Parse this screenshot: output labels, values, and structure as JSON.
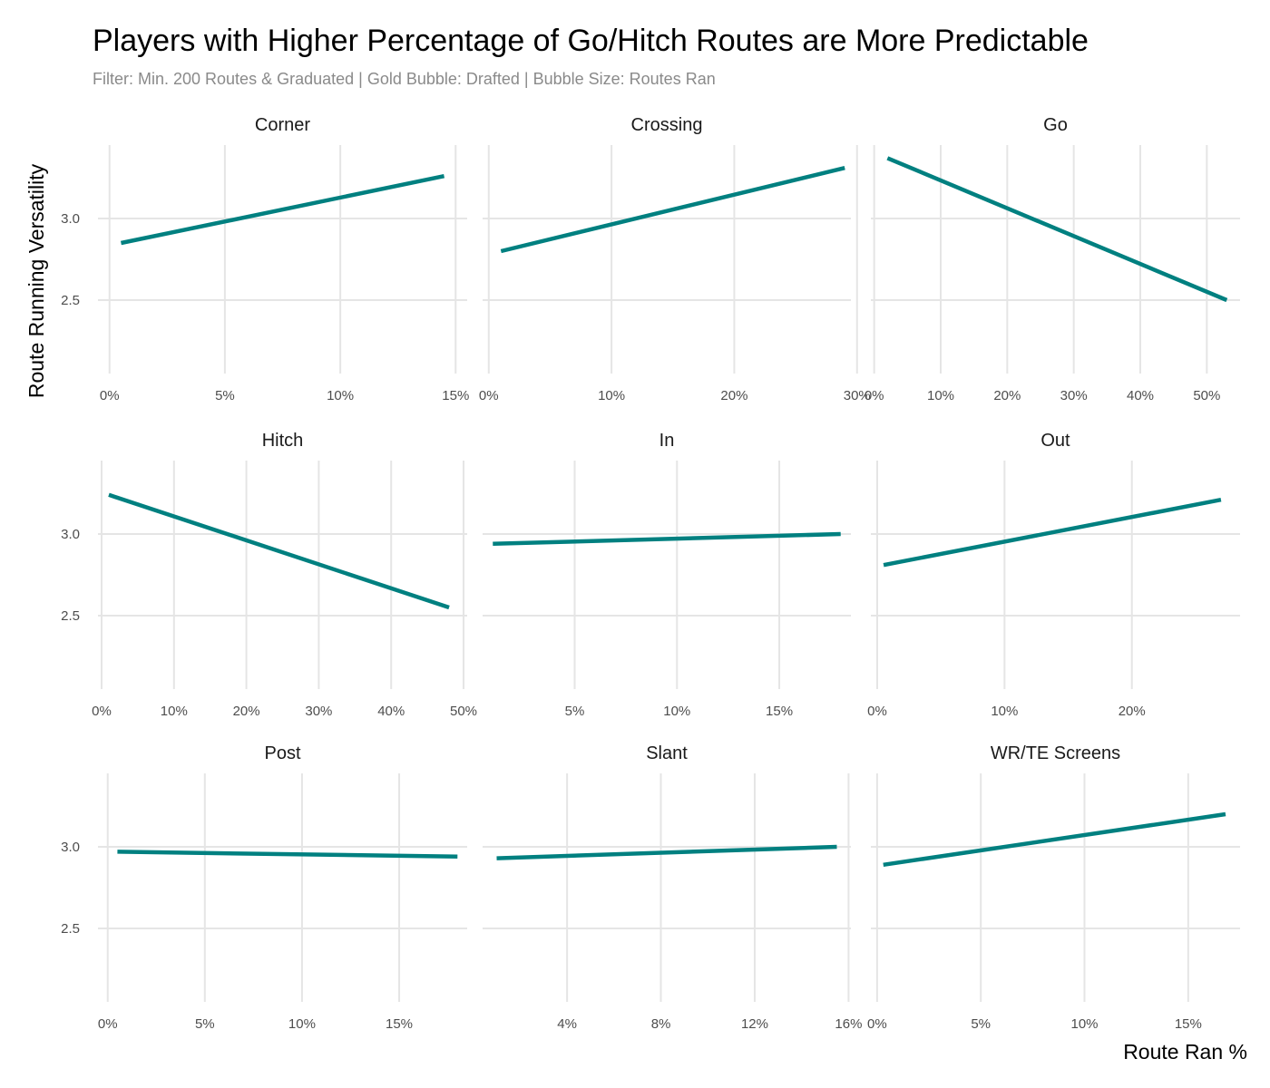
{
  "chart_data": {
    "type": "scatter",
    "title": "Players with Higher Percentage of Go/Hitch Routes are More Predictable",
    "subtitle": "Filter: Min. 200 Routes & Graduated | Gold Bubble: Drafted | Bubble Size: Routes Ran",
    "xlabel": "Route Ran %",
    "ylabel": "Route Running Versatility",
    "grid": true,
    "colors": {
      "drafted": "#e6c150",
      "undrafted": "#d3d3d3",
      "outline": "#333333",
      "trend": "#008080"
    },
    "ylim": [
      2.05,
      3.45
    ],
    "yticks": [
      2.5,
      3.0
    ],
    "ytick_labels": [
      "2.5",
      "3.0"
    ],
    "panels": [
      {
        "name": "Corner",
        "xlim": [
          -0.005,
          0.155
        ],
        "xticks": [
          0,
          0.05,
          0.1,
          0.15
        ],
        "xtick_labels": [
          "0%",
          "5%",
          "10%",
          "15%"
        ],
        "trend": {
          "x": [
            0.005,
            0.145
          ],
          "y": [
            2.85,
            3.26
          ]
        }
      },
      {
        "name": "Crossing",
        "xlim": [
          -0.005,
          0.295
        ],
        "xticks": [
          0,
          0.1,
          0.2,
          0.3
        ],
        "xtick_labels": [
          "0%",
          "10%",
          "20%",
          "30%"
        ],
        "trend": {
          "x": [
            0.01,
            0.29
          ],
          "y": [
            2.8,
            3.31
          ]
        }
      },
      {
        "name": "Go",
        "xlim": [
          -0.005,
          0.55
        ],
        "xticks": [
          0,
          0.1,
          0.2,
          0.3,
          0.4,
          0.5
        ],
        "xtick_labels": [
          "0%",
          "10%",
          "20%",
          "30%",
          "40%",
          "50%"
        ],
        "trend": {
          "x": [
            0.02,
            0.53
          ],
          "y": [
            3.37,
            2.5
          ]
        }
      },
      {
        "name": "Hitch",
        "xlim": [
          -0.005,
          0.505
        ],
        "xticks": [
          0,
          0.1,
          0.2,
          0.3,
          0.4,
          0.5
        ],
        "xtick_labels": [
          "0%",
          "10%",
          "20%",
          "30%",
          "40%",
          "50%"
        ],
        "trend": {
          "x": [
            0.01,
            0.48
          ],
          "y": [
            3.24,
            2.55
          ]
        }
      },
      {
        "name": "In",
        "xlim": [
          0.005,
          0.185
        ],
        "xticks": [
          0.05,
          0.1,
          0.15
        ],
        "xtick_labels": [
          "5%",
          "10%",
          "15%"
        ],
        "trend": {
          "x": [
            0.01,
            0.18
          ],
          "y": [
            2.94,
            3.0
          ]
        }
      },
      {
        "name": "Out",
        "xlim": [
          -0.005,
          0.285
        ],
        "xticks": [
          0,
          0.1,
          0.2
        ],
        "xtick_labels": [
          "0%",
          "10%",
          "20%"
        ],
        "trend": {
          "x": [
            0.005,
            0.27
          ],
          "y": [
            2.81,
            3.21
          ]
        }
      },
      {
        "name": "Post",
        "xlim": [
          -0.005,
          0.185
        ],
        "xticks": [
          0,
          0.05,
          0.1,
          0.15
        ],
        "xtick_labels": [
          "0%",
          "5%",
          "10%",
          "15%"
        ],
        "trend": {
          "x": [
            0.005,
            0.18
          ],
          "y": [
            2.97,
            2.94
          ]
        }
      },
      {
        "name": "Slant",
        "xlim": [
          0.004,
          0.161
        ],
        "xticks": [
          0.04,
          0.08,
          0.12,
          0.16
        ],
        "xtick_labels": [
          "4%",
          "8%",
          "12%",
          "16%"
        ],
        "trend": {
          "x": [
            0.01,
            0.155
          ],
          "y": [
            2.93,
            3.0
          ]
        }
      },
      {
        "name": "WR/TE Screens",
        "xlim": [
          -0.003,
          0.175
        ],
        "xticks": [
          0,
          0.05,
          0.1,
          0.15
        ],
        "xtick_labels": [
          "0%",
          "5%",
          "10%",
          "15%"
        ],
        "trend": {
          "x": [
            0.003,
            0.168
          ],
          "y": [
            2.89,
            3.2
          ]
        }
      }
    ]
  }
}
